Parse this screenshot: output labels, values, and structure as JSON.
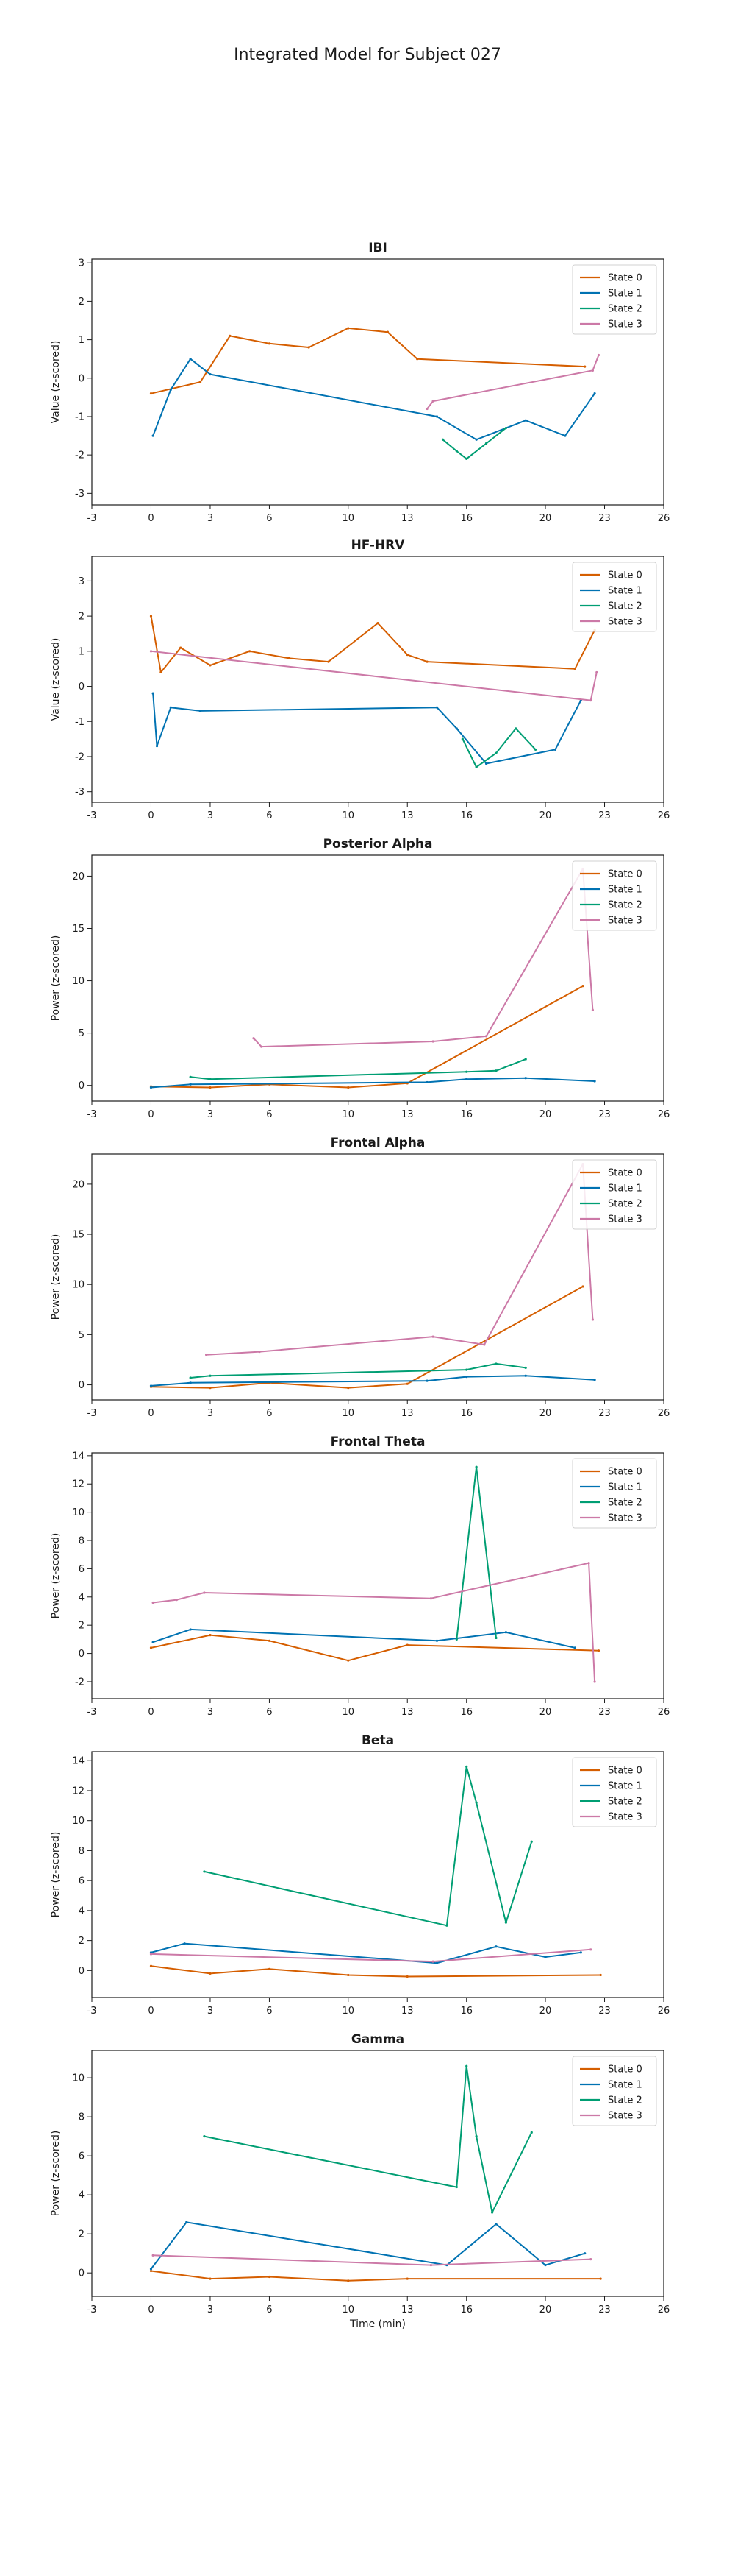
{
  "figure": {
    "title": "Integrated Model for Subject 027",
    "x_label": "Time (min)",
    "colors": {
      "State 0": "#d55e00",
      "State 1": "#0072b2",
      "State 2": "#009e73",
      "State 3": "#cc79a7"
    }
  },
  "chart_data": [
    {
      "type": "line",
      "title": "IBI",
      "ylabel": "Value (z-scored)",
      "xlabel": "",
      "xlim": [
        -3,
        26
      ],
      "ylim": [
        -3.3,
        3.1
      ],
      "xticks": [
        -3,
        0,
        3,
        6,
        10,
        13,
        16,
        20,
        23,
        26
      ],
      "yticks": [
        -3,
        -2,
        -1,
        0,
        1,
        2,
        3
      ],
      "legend": [
        "State 0",
        "State 1",
        "State 2",
        "State 3"
      ],
      "legend_position": "top-right",
      "grid": false,
      "series": [
        {
          "name": "State 0",
          "x": [
            0.0,
            2.5,
            4.0,
            6.0,
            8.0,
            10.0,
            12.0,
            13.5,
            22.0
          ],
          "y": [
            -0.4,
            -0.1,
            1.1,
            0.9,
            0.8,
            1.3,
            1.2,
            0.5,
            0.3
          ]
        },
        {
          "name": "State 1",
          "x": [
            0.1,
            1.0,
            2.0,
            3.0,
            14.5,
            16.5,
            19.0,
            21.0,
            22.5
          ],
          "y": [
            -1.5,
            -0.3,
            0.5,
            0.1,
            -1.0,
            -1.6,
            -1.1,
            -1.5,
            -0.4
          ]
        },
        {
          "name": "State 2",
          "x": [
            14.8,
            15.5,
            16.0,
            17.0,
            18.0
          ],
          "y": [
            -1.6,
            -1.9,
            -2.1,
            -1.7,
            -1.3
          ]
        },
        {
          "name": "State 3",
          "x": [
            14.0,
            14.3,
            22.4,
            22.7
          ],
          "y": [
            -0.8,
            -0.6,
            0.2,
            0.6
          ]
        }
      ]
    },
    {
      "type": "line",
      "title": "HF-HRV",
      "ylabel": "Value (z-scored)",
      "xlabel": "",
      "xlim": [
        -3,
        26
      ],
      "ylim": [
        -3.3,
        3.7
      ],
      "xticks": [
        -3,
        0,
        3,
        6,
        10,
        13,
        16,
        20,
        23,
        26
      ],
      "yticks": [
        -3,
        -2,
        -1,
        0,
        1,
        2,
        3
      ],
      "legend": [
        "State 0",
        "State 1",
        "State 2",
        "State 3"
      ],
      "legend_position": "top-right",
      "grid": false,
      "series": [
        {
          "name": "State 0",
          "x": [
            0.0,
            0.5,
            1.5,
            3.0,
            5.0,
            7.0,
            9.0,
            11.5,
            13.0,
            14.0,
            21.5,
            22.5
          ],
          "y": [
            2.0,
            0.4,
            1.1,
            0.6,
            1.0,
            0.8,
            0.7,
            1.8,
            0.9,
            0.7,
            0.5,
            1.6
          ]
        },
        {
          "name": "State 1",
          "x": [
            0.1,
            0.3,
            1.0,
            2.5,
            14.5,
            15.5,
            17.0,
            20.5,
            21.8
          ],
          "y": [
            -0.2,
            -1.7,
            -0.6,
            -0.7,
            -0.6,
            -1.2,
            -2.2,
            -1.8,
            -0.4
          ]
        },
        {
          "name": "State 2",
          "x": [
            15.8,
            16.5,
            17.5,
            18.5,
            19.5
          ],
          "y": [
            -1.5,
            -2.3,
            -1.9,
            -1.2,
            -1.8
          ]
        },
        {
          "name": "State 3",
          "x": [
            0.0,
            22.3,
            22.6
          ],
          "y": [
            1.0,
            -0.4,
            0.4
          ]
        }
      ]
    },
    {
      "type": "line",
      "title": "Posterior Alpha",
      "ylabel": "Power (z-scored)",
      "xlabel": "",
      "xlim": [
        -3,
        26
      ],
      "ylim": [
        -1.5,
        22
      ],
      "xticks": [
        -3,
        0,
        3,
        6,
        10,
        13,
        16,
        20,
        23,
        26
      ],
      "yticks": [
        0,
        5,
        10,
        15,
        20
      ],
      "legend": [
        "State 0",
        "State 1",
        "State 2",
        "State 3"
      ],
      "legend_position": "top-right",
      "grid": false,
      "series": [
        {
          "name": "State 0",
          "x": [
            0.0,
            3.0,
            6.0,
            10.0,
            13.0,
            21.9
          ],
          "y": [
            -0.1,
            -0.2,
            0.1,
            -0.2,
            0.2,
            9.5
          ]
        },
        {
          "name": "State 1",
          "x": [
            0.0,
            2.0,
            14.0,
            16.0,
            19.0,
            22.5
          ],
          "y": [
            -0.2,
            0.1,
            0.3,
            0.6,
            0.7,
            0.4
          ]
        },
        {
          "name": "State 2",
          "x": [
            2.0,
            3.0,
            16.0,
            17.5,
            19.0
          ],
          "y": [
            0.8,
            0.6,
            1.3,
            1.4,
            2.5
          ]
        },
        {
          "name": "State 3",
          "x": [
            5.2,
            5.6,
            14.3,
            17.0,
            21.9,
            22.4
          ],
          "y": [
            4.5,
            3.7,
            4.2,
            4.7,
            20.7,
            7.2
          ]
        }
      ]
    },
    {
      "type": "line",
      "title": "Frontal Alpha",
      "ylabel": "Power (z-scored)",
      "xlabel": "",
      "xlim": [
        -3,
        26
      ],
      "ylim": [
        -1.5,
        23
      ],
      "xticks": [
        -3,
        0,
        3,
        6,
        10,
        13,
        16,
        20,
        23,
        26
      ],
      "yticks": [
        0,
        5,
        10,
        15,
        20
      ],
      "legend": [
        "State 0",
        "State 1",
        "State 2",
        "State 3"
      ],
      "legend_position": "top-right",
      "grid": false,
      "series": [
        {
          "name": "State 0",
          "x": [
            0.0,
            3.0,
            6.0,
            10.0,
            13.0,
            21.9
          ],
          "y": [
            -0.2,
            -0.3,
            0.2,
            -0.3,
            0.1,
            9.8
          ]
        },
        {
          "name": "State 1",
          "x": [
            0.0,
            2.0,
            14.0,
            16.0,
            19.0,
            22.5
          ],
          "y": [
            -0.1,
            0.2,
            0.4,
            0.8,
            0.9,
            0.5
          ]
        },
        {
          "name": "State 2",
          "x": [
            2.0,
            3.0,
            16.0,
            17.5,
            19.0
          ],
          "y": [
            0.7,
            0.9,
            1.5,
            2.1,
            1.7
          ]
        },
        {
          "name": "State 3",
          "x": [
            2.8,
            5.5,
            14.3,
            16.9,
            21.9,
            22.4
          ],
          "y": [
            3.0,
            3.3,
            4.8,
            4.0,
            22.0,
            6.5
          ]
        }
      ]
    },
    {
      "type": "line",
      "title": "Frontal Theta",
      "ylabel": "Power (z-scored)",
      "xlabel": "",
      "xlim": [
        -3,
        26
      ],
      "ylim": [
        -3.2,
        14.2
      ],
      "xticks": [
        -3,
        0,
        3,
        6,
        10,
        13,
        16,
        20,
        23,
        26
      ],
      "yticks": [
        -2,
        0,
        2,
        4,
        6,
        8,
        10,
        12,
        14
      ],
      "legend": [
        "State 0",
        "State 1",
        "State 2",
        "State 3"
      ],
      "legend_position": "top-right",
      "grid": false,
      "series": [
        {
          "name": "State 0",
          "x": [
            0.0,
            3.0,
            6.0,
            10.0,
            13.0,
            22.7
          ],
          "y": [
            0.4,
            1.3,
            0.9,
            -0.5,
            0.6,
            0.2
          ]
        },
        {
          "name": "State 1",
          "x": [
            0.1,
            2.0,
            14.5,
            18.0,
            21.5
          ],
          "y": [
            0.8,
            1.7,
            0.9,
            1.5,
            0.4
          ]
        },
        {
          "name": "State 2",
          "x": [
            15.5,
            16.5,
            17.5
          ],
          "y": [
            1.0,
            13.2,
            1.1
          ]
        },
        {
          "name": "State 3",
          "x": [
            0.1,
            1.3,
            2.7,
            14.2,
            22.2,
            22.5
          ],
          "y": [
            3.6,
            3.8,
            4.3,
            3.9,
            6.4,
            -2.0
          ]
        }
      ]
    },
    {
      "type": "line",
      "title": "Beta",
      "ylabel": "Power (z-scored)",
      "xlabel": "",
      "xlim": [
        -3,
        26
      ],
      "ylim": [
        -1.8,
        14.6
      ],
      "xticks": [
        -3,
        0,
        3,
        6,
        10,
        13,
        16,
        20,
        23,
        26
      ],
      "yticks": [
        0,
        2,
        4,
        6,
        8,
        10,
        12,
        14
      ],
      "legend": [
        "State 0",
        "State 1",
        "State 2",
        "State 3"
      ],
      "legend_position": "top-right",
      "grid": false,
      "series": [
        {
          "name": "State 0",
          "x": [
            0.0,
            3.0,
            6.0,
            10.0,
            13.0,
            22.8
          ],
          "y": [
            0.3,
            -0.2,
            0.1,
            -0.3,
            -0.4,
            -0.3
          ]
        },
        {
          "name": "State 1",
          "x": [
            0.0,
            1.7,
            14.5,
            17.5,
            20.0,
            21.8
          ],
          "y": [
            1.2,
            1.8,
            0.5,
            1.6,
            0.9,
            1.2
          ]
        },
        {
          "name": "State 2",
          "x": [
            2.7,
            15.0,
            16.0,
            16.5,
            18.0,
            19.3
          ],
          "y": [
            6.6,
            3.0,
            13.6,
            11.2,
            3.2,
            8.6
          ]
        },
        {
          "name": "State 3",
          "x": [
            0.0,
            14.3,
            22.3
          ],
          "y": [
            1.1,
            0.6,
            1.4
          ]
        }
      ]
    },
    {
      "type": "line",
      "title": "Gamma",
      "ylabel": "Power (z-scored)",
      "xlabel": "Time (min)",
      "xlim": [
        -3,
        26
      ],
      "ylim": [
        -1.2,
        11.4
      ],
      "xticks": [
        -3,
        0,
        3,
        6,
        10,
        13,
        16,
        20,
        23,
        26
      ],
      "yticks": [
        0,
        2,
        4,
        6,
        8,
        10
      ],
      "legend": [
        "State 0",
        "State 1",
        "State 2",
        "State 3"
      ],
      "legend_position": "top-right",
      "grid": false,
      "series": [
        {
          "name": "State 0",
          "x": [
            0.0,
            3.0,
            6.0,
            10.0,
            13.0,
            22.8
          ],
          "y": [
            0.1,
            -0.3,
            -0.2,
            -0.4,
            -0.3,
            -0.3
          ]
        },
        {
          "name": "State 1",
          "x": [
            0.0,
            1.8,
            15.0,
            17.5,
            20.0,
            22.0
          ],
          "y": [
            0.2,
            2.6,
            0.4,
            2.5,
            0.4,
            1.0
          ]
        },
        {
          "name": "State 2",
          "x": [
            2.7,
            15.5,
            16.0,
            16.5,
            17.3,
            19.3
          ],
          "y": [
            7.0,
            4.4,
            10.6,
            7.0,
            3.1,
            7.2
          ]
        },
        {
          "name": "State 3",
          "x": [
            0.1,
            14.2,
            22.3
          ],
          "y": [
            0.9,
            0.4,
            0.7
          ]
        }
      ]
    }
  ]
}
